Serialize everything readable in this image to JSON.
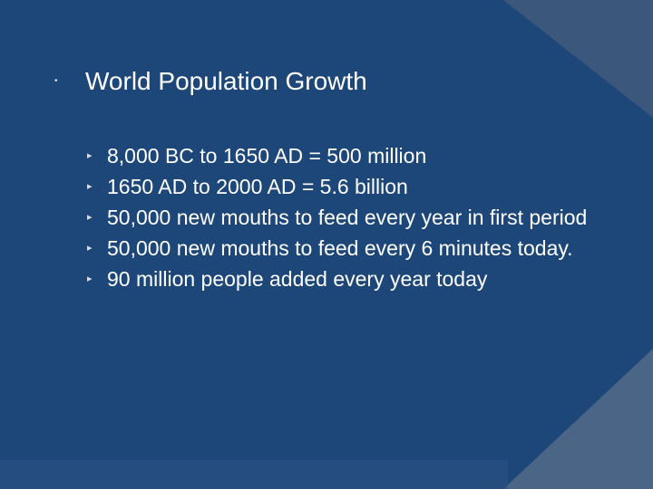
{
  "slide": {
    "title": "World Population Growth",
    "title_bullet": "•",
    "bullet_glyph": "▸",
    "bullets": [
      "8,000 BC to 1650 AD = 500 million",
      "1650 AD to 2000 AD = 5.6 billion",
      "50,000 new mouths to feed every year in first period",
      "50,000 new mouths to feed every 6 minutes today.",
      "90 million people added every year today"
    ],
    "colors": {
      "background": "#1e4779",
      "shape_light": "#4a6586",
      "shape_dark": "#3b587c",
      "text": "#ffffff",
      "bullet": "#d9dde6"
    }
  }
}
